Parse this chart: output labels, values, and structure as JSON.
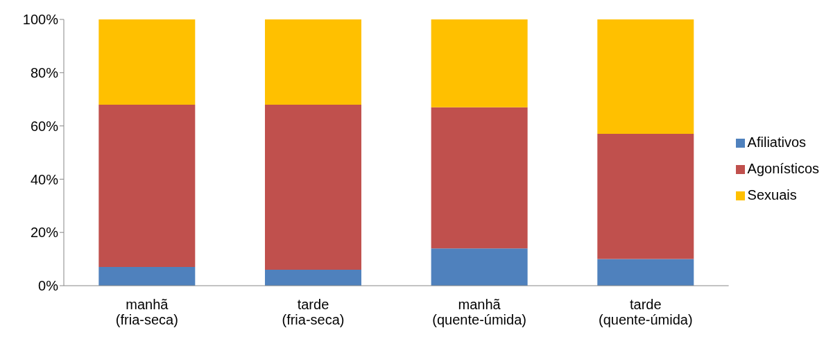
{
  "chart_data": {
    "type": "bar",
    "stacked": true,
    "categories": [
      "manhã\n(fria-seca)",
      "tarde\n(fria-seca)",
      "manhã\n(quente-úmida)",
      "tarde\n(quente-úmida)"
    ],
    "series": [
      {
        "name": "Afiliativos",
        "color": "#4f81bd",
        "values": [
          7,
          6,
          14,
          10
        ]
      },
      {
        "name": "Agonísticos",
        "color": "#c0504d",
        "values": [
          61,
          62,
          53,
          47
        ]
      },
      {
        "name": "Sexuais",
        "color": "#ffc000",
        "values": [
          32,
          32,
          33,
          43
        ]
      }
    ],
    "ylim": [
      0,
      100
    ],
    "yticks": [
      {
        "value": 0,
        "label": "0%"
      },
      {
        "value": 20,
        "label": "20%"
      },
      {
        "value": 40,
        "label": "40%"
      },
      {
        "value": 60,
        "label": "60%"
      },
      {
        "value": 80,
        "label": "80%"
      },
      {
        "value": 100,
        "label": "100%"
      }
    ],
    "grid": false,
    "legend": "right"
  }
}
